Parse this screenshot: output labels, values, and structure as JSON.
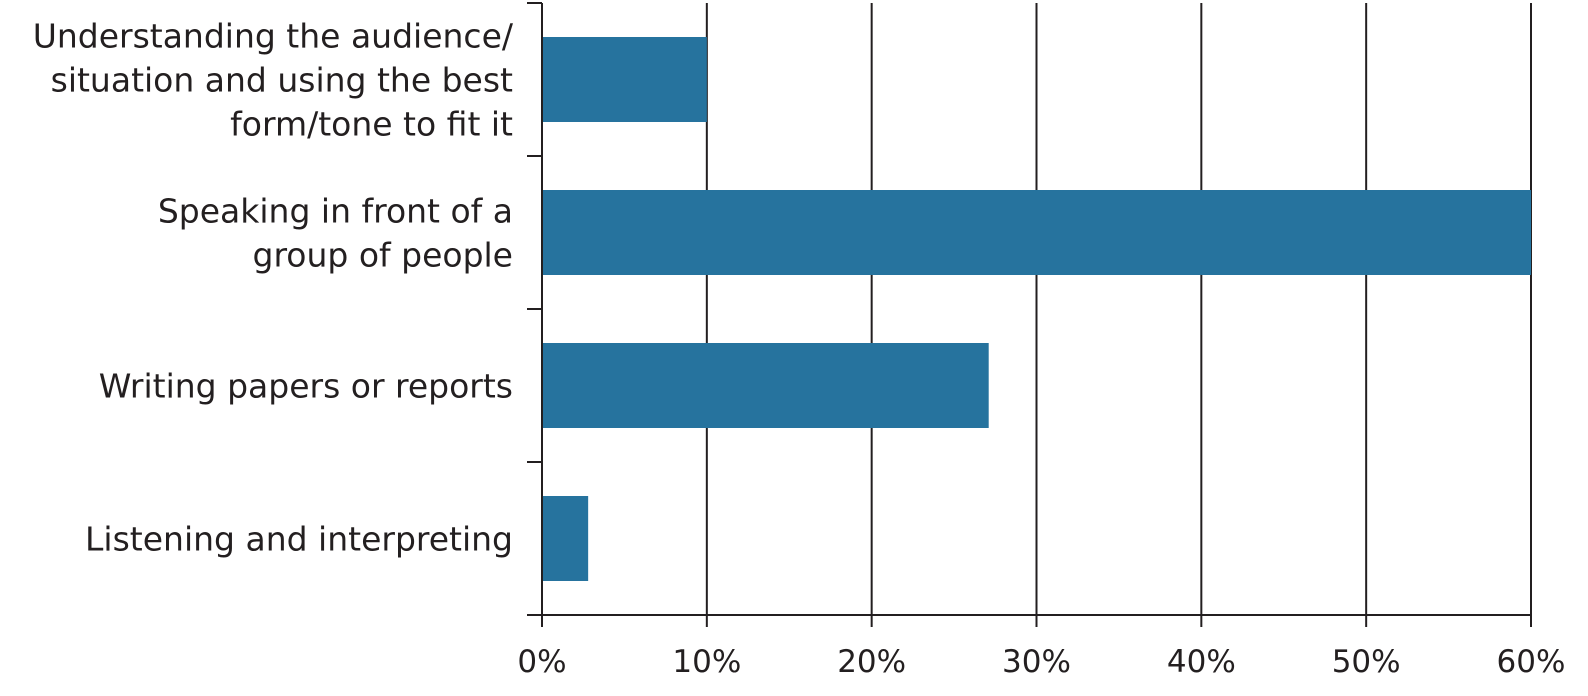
{
  "chart_data": {
    "type": "bar",
    "orientation": "horizontal",
    "title": "",
    "xlabel": "",
    "ylabel": "",
    "categories": [
      [
        "Understanding the audience/",
        "situation and using the best",
        "form/tone to fit it"
      ],
      [
        "Speaking in front of a",
        "group of people"
      ],
      [
        "Writing papers or reports"
      ],
      [
        "Listening and interpreting"
      ]
    ],
    "values": [
      10,
      60,
      27.1,
      2.8
    ],
    "xlim": [
      0,
      60
    ],
    "x_ticks": [
      0,
      10,
      20,
      30,
      40,
      50,
      60
    ],
    "x_tick_labels": [
      "0%",
      "10%",
      "20%",
      "30%",
      "40%",
      "50%",
      "60%"
    ],
    "grid": "vertical",
    "legend": "none",
    "bar_color": "#26739e",
    "axis_color": "#231f20"
  }
}
